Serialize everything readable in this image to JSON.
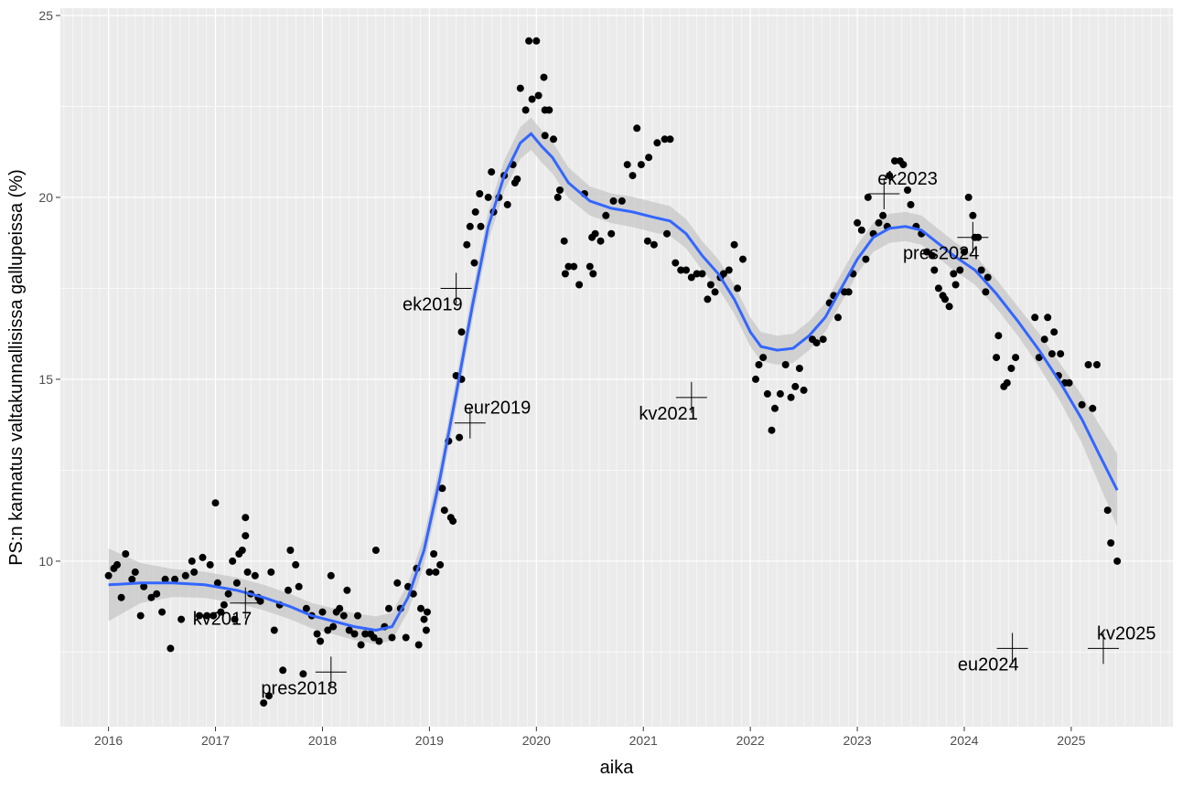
{
  "chart_data": {
    "type": "scatter",
    "title": "",
    "xlabel": "aika",
    "ylabel": "PS:n kannatus valtakunnallisissa gallupeissa (%)",
    "xlim": [
      2015.55,
      2025.95
    ],
    "ylim": [
      5.45,
      25.2
    ],
    "x_ticks": [
      2016,
      2017,
      2018,
      2019,
      2020,
      2021,
      2022,
      2023,
      2024,
      2025
    ],
    "x_tick_labels": [
      "2016",
      "2017",
      "2018",
      "2019",
      "2020",
      "2021",
      "2022",
      "2023",
      "2024",
      "2025"
    ],
    "y_ticks": [
      10,
      15,
      20,
      25
    ],
    "y_tick_labels": [
      "10",
      "15",
      "20",
      "25"
    ],
    "grid": true,
    "colors": {
      "panel": "#ebebeb",
      "grid": "#ffffff",
      "points": "#000000",
      "smooth_line": "#3366ff",
      "confidence_band": "#bebebe"
    },
    "points": [
      [
        2016.0,
        9.6
      ],
      [
        2016.05,
        9.8
      ],
      [
        2016.08,
        9.9
      ],
      [
        2016.12,
        9.0
      ],
      [
        2016.16,
        10.2
      ],
      [
        2016.22,
        9.5
      ],
      [
        2016.25,
        9.7
      ],
      [
        2016.3,
        8.5
      ],
      [
        2016.33,
        9.3
      ],
      [
        2016.4,
        9.0
      ],
      [
        2016.45,
        9.1
      ],
      [
        2016.5,
        8.6
      ],
      [
        2016.53,
        9.5
      ],
      [
        2016.58,
        7.6
      ],
      [
        2016.62,
        9.5
      ],
      [
        2016.68,
        8.4
      ],
      [
        2016.72,
        9.6
      ],
      [
        2016.78,
        10.0
      ],
      [
        2016.8,
        9.7
      ],
      [
        2016.85,
        8.5
      ],
      [
        2016.88,
        10.1
      ],
      [
        2016.92,
        8.5
      ],
      [
        2016.95,
        9.9
      ],
      [
        2016.98,
        8.5
      ],
      [
        2017.0,
        11.6
      ],
      [
        2017.02,
        9.4
      ],
      [
        2017.05,
        8.6
      ],
      [
        2017.08,
        8.8
      ],
      [
        2017.12,
        9.1
      ],
      [
        2017.16,
        10.0
      ],
      [
        2017.18,
        8.4
      ],
      [
        2017.2,
        9.4
      ],
      [
        2017.22,
        10.2
      ],
      [
        2017.25,
        10.3
      ],
      [
        2017.28,
        11.2
      ],
      [
        2017.28,
        10.7
      ],
      [
        2017.3,
        9.7
      ],
      [
        2017.33,
        9.1
      ],
      [
        2017.37,
        9.6
      ],
      [
        2017.4,
        9.0
      ],
      [
        2017.42,
        8.9
      ],
      [
        2017.45,
        6.1
      ],
      [
        2017.5,
        6.3
      ],
      [
        2017.52,
        9.7
      ],
      [
        2017.55,
        8.1
      ],
      [
        2017.6,
        8.8
      ],
      [
        2017.63,
        7.0
      ],
      [
        2017.68,
        9.2
      ],
      [
        2017.7,
        10.3
      ],
      [
        2017.75,
        9.9
      ],
      [
        2017.78,
        9.3
      ],
      [
        2017.82,
        6.9
      ],
      [
        2017.85,
        8.7
      ],
      [
        2017.9,
        8.5
      ],
      [
        2017.95,
        8.0
      ],
      [
        2017.98,
        7.8
      ],
      [
        2018.0,
        8.6
      ],
      [
        2018.05,
        8.1
      ],
      [
        2018.08,
        9.6
      ],
      [
        2018.1,
        8.2
      ],
      [
        2018.13,
        8.6
      ],
      [
        2018.16,
        8.7
      ],
      [
        2018.2,
        8.5
      ],
      [
        2018.23,
        9.2
      ],
      [
        2018.25,
        8.1
      ],
      [
        2018.3,
        8.0
      ],
      [
        2018.33,
        8.5
      ],
      [
        2018.36,
        7.7
      ],
      [
        2018.4,
        8.0
      ],
      [
        2018.45,
        8.0
      ],
      [
        2018.48,
        7.9
      ],
      [
        2018.5,
        10.3
      ],
      [
        2018.53,
        7.8
      ],
      [
        2018.58,
        8.2
      ],
      [
        2018.62,
        8.7
      ],
      [
        2018.65,
        7.9
      ],
      [
        2018.7,
        9.4
      ],
      [
        2018.73,
        8.7
      ],
      [
        2018.78,
        7.9
      ],
      [
        2018.8,
        9.3
      ],
      [
        2018.85,
        9.1
      ],
      [
        2018.88,
        9.8
      ],
      [
        2018.9,
        7.7
      ],
      [
        2018.92,
        8.7
      ],
      [
        2018.95,
        8.4
      ],
      [
        2018.97,
        8.1
      ],
      [
        2018.98,
        8.6
      ],
      [
        2019.0,
        9.7
      ],
      [
        2019.04,
        10.2
      ],
      [
        2019.06,
        9.7
      ],
      [
        2019.1,
        9.9
      ],
      [
        2019.12,
        12.0
      ],
      [
        2019.14,
        11.4
      ],
      [
        2019.18,
        13.3
      ],
      [
        2019.2,
        11.2
      ],
      [
        2019.22,
        11.1
      ],
      [
        2019.25,
        15.1
      ],
      [
        2019.28,
        13.4
      ],
      [
        2019.3,
        15.0
      ],
      [
        2019.3,
        16.3
      ],
      [
        2019.35,
        18.7
      ],
      [
        2019.38,
        19.2
      ],
      [
        2019.42,
        18.2
      ],
      [
        2019.43,
        19.6
      ],
      [
        2019.47,
        20.1
      ],
      [
        2019.48,
        19.2
      ],
      [
        2019.55,
        20.0
      ],
      [
        2019.58,
        20.7
      ],
      [
        2019.6,
        19.6
      ],
      [
        2019.65,
        20.0
      ],
      [
        2019.7,
        20.6
      ],
      [
        2019.73,
        19.8
      ],
      [
        2019.78,
        20.9
      ],
      [
        2019.8,
        20.4
      ],
      [
        2019.82,
        20.5
      ],
      [
        2019.85,
        23.0
      ],
      [
        2019.9,
        22.4
      ],
      [
        2019.93,
        24.3
      ],
      [
        2019.96,
        22.7
      ],
      [
        2020.0,
        24.3
      ],
      [
        2020.02,
        22.8
      ],
      [
        2020.07,
        23.3
      ],
      [
        2020.08,
        22.4
      ],
      [
        2020.08,
        21.7
      ],
      [
        2020.12,
        22.4
      ],
      [
        2020.16,
        21.6
      ],
      [
        2020.2,
        20.0
      ],
      [
        2020.22,
        20.2
      ],
      [
        2020.26,
        18.8
      ],
      [
        2020.27,
        17.9
      ],
      [
        2020.3,
        18.1
      ],
      [
        2020.35,
        18.1
      ],
      [
        2020.4,
        17.6
      ],
      [
        2020.45,
        20.1
      ],
      [
        2020.5,
        18.1
      ],
      [
        2020.52,
        18.9
      ],
      [
        2020.53,
        17.9
      ],
      [
        2020.55,
        19.0
      ],
      [
        2020.6,
        18.8
      ],
      [
        2020.65,
        19.5
      ],
      [
        2020.7,
        19.0
      ],
      [
        2020.72,
        19.9
      ],
      [
        2020.8,
        19.9
      ],
      [
        2020.85,
        20.9
      ],
      [
        2020.9,
        20.6
      ],
      [
        2020.94,
        21.9
      ],
      [
        2020.98,
        20.9
      ],
      [
        2021.05,
        21.1
      ],
      [
        2021.1,
        18.7
      ],
      [
        2021.13,
        21.5
      ],
      [
        2021.2,
        21.6
      ],
      [
        2021.25,
        21.6
      ],
      [
        2021.04,
        18.8
      ],
      [
        2021.22,
        19.0
      ],
      [
        2021.3,
        18.2
      ],
      [
        2021.35,
        18.0
      ],
      [
        2021.4,
        18.0
      ],
      [
        2021.45,
        17.8
      ],
      [
        2021.5,
        17.9
      ],
      [
        2021.55,
        17.9
      ],
      [
        2021.6,
        17.2
      ],
      [
        2021.63,
        17.6
      ],
      [
        2021.67,
        17.4
      ],
      [
        2021.72,
        17.8
      ],
      [
        2021.75,
        17.9
      ],
      [
        2021.8,
        18.0
      ],
      [
        2021.85,
        18.7
      ],
      [
        2021.88,
        17.5
      ],
      [
        2021.93,
        18.3
      ],
      [
        2022.05,
        15.0
      ],
      [
        2022.08,
        15.4
      ],
      [
        2022.12,
        15.6
      ],
      [
        2022.16,
        14.6
      ],
      [
        2022.2,
        13.6
      ],
      [
        2022.23,
        14.2
      ],
      [
        2022.28,
        14.6
      ],
      [
        2022.33,
        15.4
      ],
      [
        2022.38,
        14.5
      ],
      [
        2022.42,
        14.8
      ],
      [
        2022.46,
        15.3
      ],
      [
        2022.5,
        14.7
      ],
      [
        2022.58,
        16.1
      ],
      [
        2022.62,
        16.0
      ],
      [
        2022.68,
        16.1
      ],
      [
        2022.74,
        17.1
      ],
      [
        2022.78,
        17.3
      ],
      [
        2022.82,
        16.7
      ],
      [
        2022.88,
        17.4
      ],
      [
        2022.92,
        17.4
      ],
      [
        2022.96,
        17.9
      ],
      [
        2023.0,
        19.3
      ],
      [
        2023.04,
        19.1
      ],
      [
        2023.08,
        18.3
      ],
      [
        2023.1,
        20.0
      ],
      [
        2023.15,
        19.0
      ],
      [
        2023.2,
        19.3
      ],
      [
        2023.24,
        19.5
      ],
      [
        2023.28,
        19.2
      ],
      [
        2023.3,
        20.6
      ],
      [
        2023.35,
        21.0
      ],
      [
        2023.4,
        21.0
      ],
      [
        2023.43,
        20.9
      ],
      [
        2023.47,
        20.2
      ],
      [
        2023.5,
        19.8
      ],
      [
        2023.55,
        19.2
      ],
      [
        2023.6,
        19.0
      ],
      [
        2023.65,
        18.5
      ],
      [
        2023.7,
        18.4
      ],
      [
        2023.72,
        18.0
      ],
      [
        2023.76,
        17.5
      ],
      [
        2023.8,
        17.3
      ],
      [
        2023.82,
        17.2
      ],
      [
        2023.86,
        17.0
      ],
      [
        2023.9,
        17.9
      ],
      [
        2023.92,
        17.6
      ],
      [
        2023.96,
        18.0
      ],
      [
        2024.0,
        18.5
      ],
      [
        2024.04,
        20.0
      ],
      [
        2024.08,
        19.5
      ],
      [
        2024.1,
        18.9
      ],
      [
        2024.13,
        18.9
      ],
      [
        2024.16,
        18.0
      ],
      [
        2024.2,
        17.4
      ],
      [
        2024.22,
        17.8
      ],
      [
        2024.3,
        15.6
      ],
      [
        2024.32,
        16.2
      ],
      [
        2024.37,
        14.8
      ],
      [
        2024.4,
        14.9
      ],
      [
        2024.44,
        15.3
      ],
      [
        2024.48,
        15.6
      ],
      [
        2024.66,
        16.7
      ],
      [
        2024.7,
        15.6
      ],
      [
        2024.75,
        16.1
      ],
      [
        2024.78,
        16.7
      ],
      [
        2024.82,
        15.7
      ],
      [
        2024.84,
        16.3
      ],
      [
        2024.88,
        15.1
      ],
      [
        2024.9,
        15.7
      ],
      [
        2024.94,
        14.9
      ],
      [
        2024.98,
        14.9
      ],
      [
        2025.1,
        14.3
      ],
      [
        2025.16,
        15.4
      ],
      [
        2025.2,
        14.2
      ],
      [
        2025.24,
        15.4
      ],
      [
        2025.34,
        11.4
      ],
      [
        2025.37,
        10.5
      ],
      [
        2025.43,
        10.0
      ]
    ],
    "smooth": [
      [
        2016.0,
        9.35
      ],
      [
        2016.3,
        9.4
      ],
      [
        2016.6,
        9.4
      ],
      [
        2016.9,
        9.35
      ],
      [
        2017.2,
        9.2
      ],
      [
        2017.45,
        9.0
      ],
      [
        2017.7,
        8.75
      ],
      [
        2017.9,
        8.5
      ],
      [
        2018.1,
        8.35
      ],
      [
        2018.3,
        8.2
      ],
      [
        2018.5,
        8.1
      ],
      [
        2018.65,
        8.2
      ],
      [
        2018.8,
        9.0
      ],
      [
        2018.95,
        10.3
      ],
      [
        2019.1,
        12.3
      ],
      [
        2019.25,
        14.6
      ],
      [
        2019.4,
        17.0
      ],
      [
        2019.55,
        19.2
      ],
      [
        2019.7,
        20.6
      ],
      [
        2019.85,
        21.5
      ],
      [
        2019.95,
        21.75
      ],
      [
        2020.05,
        21.4
      ],
      [
        2020.15,
        21.1
      ],
      [
        2020.3,
        20.4
      ],
      [
        2020.5,
        19.9
      ],
      [
        2020.7,
        19.7
      ],
      [
        2020.9,
        19.6
      ],
      [
        2021.1,
        19.45
      ],
      [
        2021.25,
        19.35
      ],
      [
        2021.4,
        19.0
      ],
      [
        2021.55,
        18.4
      ],
      [
        2021.7,
        17.9
      ],
      [
        2021.85,
        17.2
      ],
      [
        2022.0,
        16.3
      ],
      [
        2022.1,
        15.9
      ],
      [
        2022.25,
        15.8
      ],
      [
        2022.4,
        15.85
      ],
      [
        2022.55,
        16.2
      ],
      [
        2022.7,
        16.7
      ],
      [
        2022.85,
        17.5
      ],
      [
        2023.0,
        18.3
      ],
      [
        2023.15,
        18.9
      ],
      [
        2023.3,
        19.15
      ],
      [
        2023.45,
        19.2
      ],
      [
        2023.6,
        19.1
      ],
      [
        2023.75,
        18.75
      ],
      [
        2023.9,
        18.4
      ],
      [
        2024.1,
        18.0
      ],
      [
        2024.3,
        17.35
      ],
      [
        2024.5,
        16.6
      ],
      [
        2024.7,
        15.8
      ],
      [
        2024.9,
        14.9
      ],
      [
        2025.1,
        13.9
      ],
      [
        2025.25,
        13.0
      ],
      [
        2025.43,
        11.95
      ]
    ],
    "band_halfwidth": [
      [
        2016.0,
        1.0
      ],
      [
        2016.4,
        0.4
      ],
      [
        2017.0,
        0.35
      ],
      [
        2017.5,
        0.35
      ],
      [
        2018.0,
        0.35
      ],
      [
        2018.5,
        0.38
      ],
      [
        2019.0,
        0.4
      ],
      [
        2019.5,
        0.4
      ],
      [
        2020.0,
        0.45
      ],
      [
        2020.5,
        0.4
      ],
      [
        2021.0,
        0.42
      ],
      [
        2021.5,
        0.4
      ],
      [
        2022.0,
        0.4
      ],
      [
        2022.5,
        0.4
      ],
      [
        2023.0,
        0.4
      ],
      [
        2023.5,
        0.4
      ],
      [
        2024.0,
        0.4
      ],
      [
        2024.5,
        0.4
      ],
      [
        2025.0,
        0.55
      ],
      [
        2025.43,
        1.0
      ]
    ],
    "annotations": [
      {
        "label": "kv2017",
        "x": 2017.28,
        "y": 8.85,
        "label_pos": "below-left"
      },
      {
        "label": "pres2018",
        "x": 2018.08,
        "y": 6.95,
        "label_pos": "below-left"
      },
      {
        "label": "ek2019",
        "x": 2019.25,
        "y": 17.5,
        "label_pos": "below-left"
      },
      {
        "label": "eur2019",
        "x": 2019.38,
        "y": 13.8,
        "label_pos": "above-right"
      },
      {
        "label": "kv2021",
        "x": 2021.45,
        "y": 14.5,
        "label_pos": "below-left"
      },
      {
        "label": "ek2023",
        "x": 2023.25,
        "y": 20.1,
        "label_pos": "above-right"
      },
      {
        "label": "pres2024",
        "x": 2024.08,
        "y": 18.9,
        "label_pos": "below-left"
      },
      {
        "label": "eu2024",
        "x": 2024.45,
        "y": 7.6,
        "label_pos": "below-left"
      },
      {
        "label": "kv2025",
        "x": 2025.3,
        "y": 7.6,
        "label_pos": "above-right"
      }
    ]
  }
}
